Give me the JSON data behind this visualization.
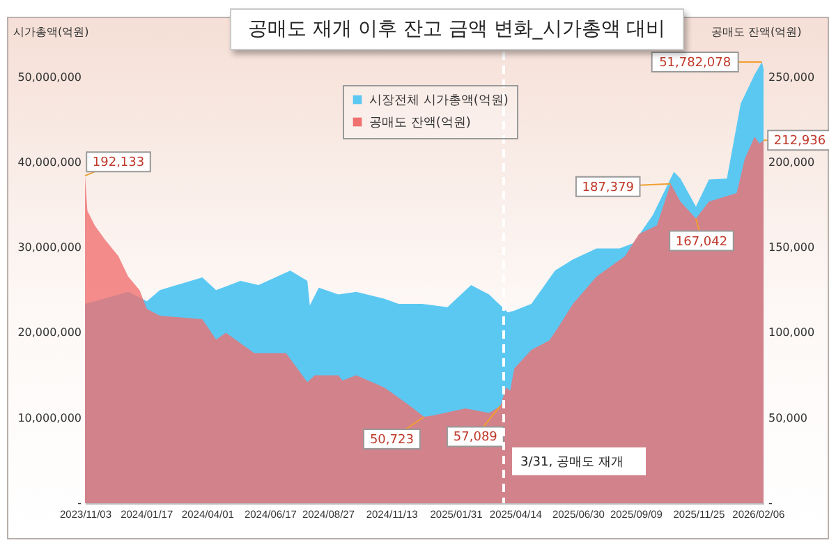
{
  "chart_data": {
    "type": "area",
    "title": "공매도 재개 이후 잔고 금액 변화_시가총액 대비",
    "ylabel": "시가총액(억원)",
    "y2label": "공매도 잔액(억원)",
    "xlim": [
      "2023-11-03",
      "2026-02-13"
    ],
    "xticks": [
      {
        "value": "2023-11-03",
        "label": "2023/11/03"
      },
      {
        "value": "2024-01-17",
        "label": "2024/01/17"
      },
      {
        "value": "2024-04-01",
        "label": "2024/04/01"
      },
      {
        "value": "2024-06-17",
        "label": "2024/06/17"
      },
      {
        "value": "2024-08-27",
        "label": "2024/08/27"
      },
      {
        "value": "2024-11-13",
        "label": "2024/11/13"
      },
      {
        "value": "2025-01-31",
        "label": "2025/01/31"
      },
      {
        "value": "2025-04-14",
        "label": "2025/04/14"
      },
      {
        "value": "2025-06-30",
        "label": "2025/06/30"
      },
      {
        "value": "2025-09-09",
        "label": "2025/09/09"
      },
      {
        "value": "2025-11-25",
        "label": "2025/11/25"
      },
      {
        "value": "2026-02-06",
        "label": "2026/02/06"
      }
    ],
    "ylim": [
      0,
      53000000
    ],
    "yticks": [
      {
        "value": 0,
        "label": "-"
      },
      {
        "value": 10000000,
        "label": "10,000,000"
      },
      {
        "value": 20000000,
        "label": "20,000,000"
      },
      {
        "value": 30000000,
        "label": "30,000,000"
      },
      {
        "value": 40000000,
        "label": "40,000,000"
      },
      {
        "value": 50000000,
        "label": "50,000,000"
      }
    ],
    "y2lim": [
      0,
      265000
    ],
    "y2ticks": [
      {
        "value": 0,
        "label": "-"
      },
      {
        "value": 50000,
        "label": "50,000"
      },
      {
        "value": 100000,
        "label": "100,000"
      },
      {
        "value": 150000,
        "label": "150,000"
      },
      {
        "value": 200000,
        "label": "200,000"
      },
      {
        "value": 250000,
        "label": "250,000"
      }
    ],
    "legend": "top",
    "series": [
      {
        "name": "시장전체 시가총액(억원)",
        "color": "#5bc8f2",
        "x": [
          "2023-11-03",
          "2023-11-15",
          "2023-12-26",
          "2024-01-18",
          "2024-02-03",
          "2024-03-26",
          "2024-04-12",
          "2024-05-12",
          "2024-06-03",
          "2024-07-12",
          "2024-08-02",
          "2024-08-05",
          "2024-08-16",
          "2024-09-09",
          "2024-10-01",
          "2024-11-04",
          "2024-11-22",
          "2024-12-21",
          "2025-01-21",
          "2025-02-19",
          "2025-03-13",
          "2025-04-05",
          "2025-04-13",
          "2025-05-04",
          "2025-06-02",
          "2025-06-24",
          "2025-07-23",
          "2025-08-20",
          "2025-09-06",
          "2025-09-30",
          "2025-10-26",
          "2025-11-03",
          "2025-11-22",
          "2025-12-08",
          "2025-12-30",
          "2026-01-16",
          "2026-02-02",
          "2026-02-11",
          "2026-02-13"
        ],
        "values": [
          23400000,
          23700000,
          24800000,
          23700000,
          25000000,
          26500000,
          25000000,
          26100000,
          25600000,
          27300000,
          26100000,
          23200000,
          25300000,
          24500000,
          24800000,
          24000000,
          23400000,
          23400000,
          23000000,
          25600000,
          24500000,
          22400000,
          22600000,
          23400000,
          27300000,
          28600000,
          29900000,
          29900000,
          30500000,
          33800000,
          38900000,
          38100000,
          34800000,
          38000000,
          38100000,
          46900000,
          50300000,
          51782078,
          51000000
        ],
        "value_labels": [
          null,
          null,
          null,
          null,
          null,
          null,
          null,
          null,
          null,
          null,
          null,
          null,
          null,
          null,
          null,
          null,
          null,
          null,
          null,
          null,
          null,
          null,
          null,
          null,
          null,
          null,
          null,
          null,
          null,
          null,
          null,
          null,
          null,
          null,
          null,
          null,
          null,
          "51,782,078",
          null
        ]
      },
      {
        "name": "공매도 잔액(억원)",
        "color": "#f07070",
        "axis": "y2",
        "x": [
          "2023-11-03",
          "2023-11-06",
          "2023-11-15",
          "2023-11-27",
          "2023-12-14",
          "2023-12-26",
          "2024-01-09",
          "2024-01-18",
          "2024-02-03",
          "2024-03-26",
          "2024-04-12",
          "2024-04-24",
          "2024-05-29",
          "2024-07-07",
          "2024-08-02",
          "2024-08-11",
          "2024-09-09",
          "2024-09-14",
          "2024-10-01",
          "2024-11-04",
          "2024-11-16",
          "2024-12-09",
          "2024-12-23",
          "2025-01-04",
          "2025-02-12",
          "2025-03-13",
          "2025-03-27",
          "2025-04-03",
          "2025-04-08",
          "2025-04-13",
          "2025-05-04",
          "2025-05-26",
          "2025-06-07",
          "2025-06-24",
          "2025-07-23",
          "2025-08-27",
          "2025-09-13",
          "2025-10-05",
          "2025-10-22",
          "2025-11-03",
          "2025-11-22",
          "2025-12-08",
          "2026-01-11",
          "2026-01-21",
          "2026-02-02",
          "2026-02-08",
          "2026-02-13"
        ],
        "values": [
          192133,
          171600,
          163000,
          155000,
          145000,
          133000,
          125000,
          114000,
          110000,
          108000,
          96000,
          100000,
          88000,
          88000,
          71000,
          75000,
          75000,
          72000,
          75000,
          68000,
          64000,
          56000,
          50723,
          51500,
          55600,
          53000,
          57089,
          68000,
          66000,
          79000,
          90000,
          95500,
          104000,
          117000,
          133000,
          145000,
          158000,
          163000,
          187379,
          177000,
          167042,
          177000,
          182000,
          202000,
          215000,
          211000,
          212936
        ],
        "value_labels": [
          "192,133",
          null,
          null,
          null,
          null,
          null,
          null,
          null,
          null,
          null,
          null,
          null,
          null,
          null,
          null,
          null,
          null,
          null,
          null,
          null,
          null,
          null,
          "50,723",
          null,
          null,
          null,
          "57,089",
          null,
          null,
          null,
          null,
          null,
          null,
          null,
          null,
          null,
          null,
          null,
          "187,379",
          null,
          "167,042",
          null,
          null,
          null,
          null,
          null,
          "212,936"
        ]
      }
    ],
    "ref_lines": [
      {
        "axis": "x",
        "value": "2025-03-31",
        "label": "3/31, 공매도 재개",
        "color": "#ffffff",
        "line_style": "dashed"
      }
    ]
  }
}
